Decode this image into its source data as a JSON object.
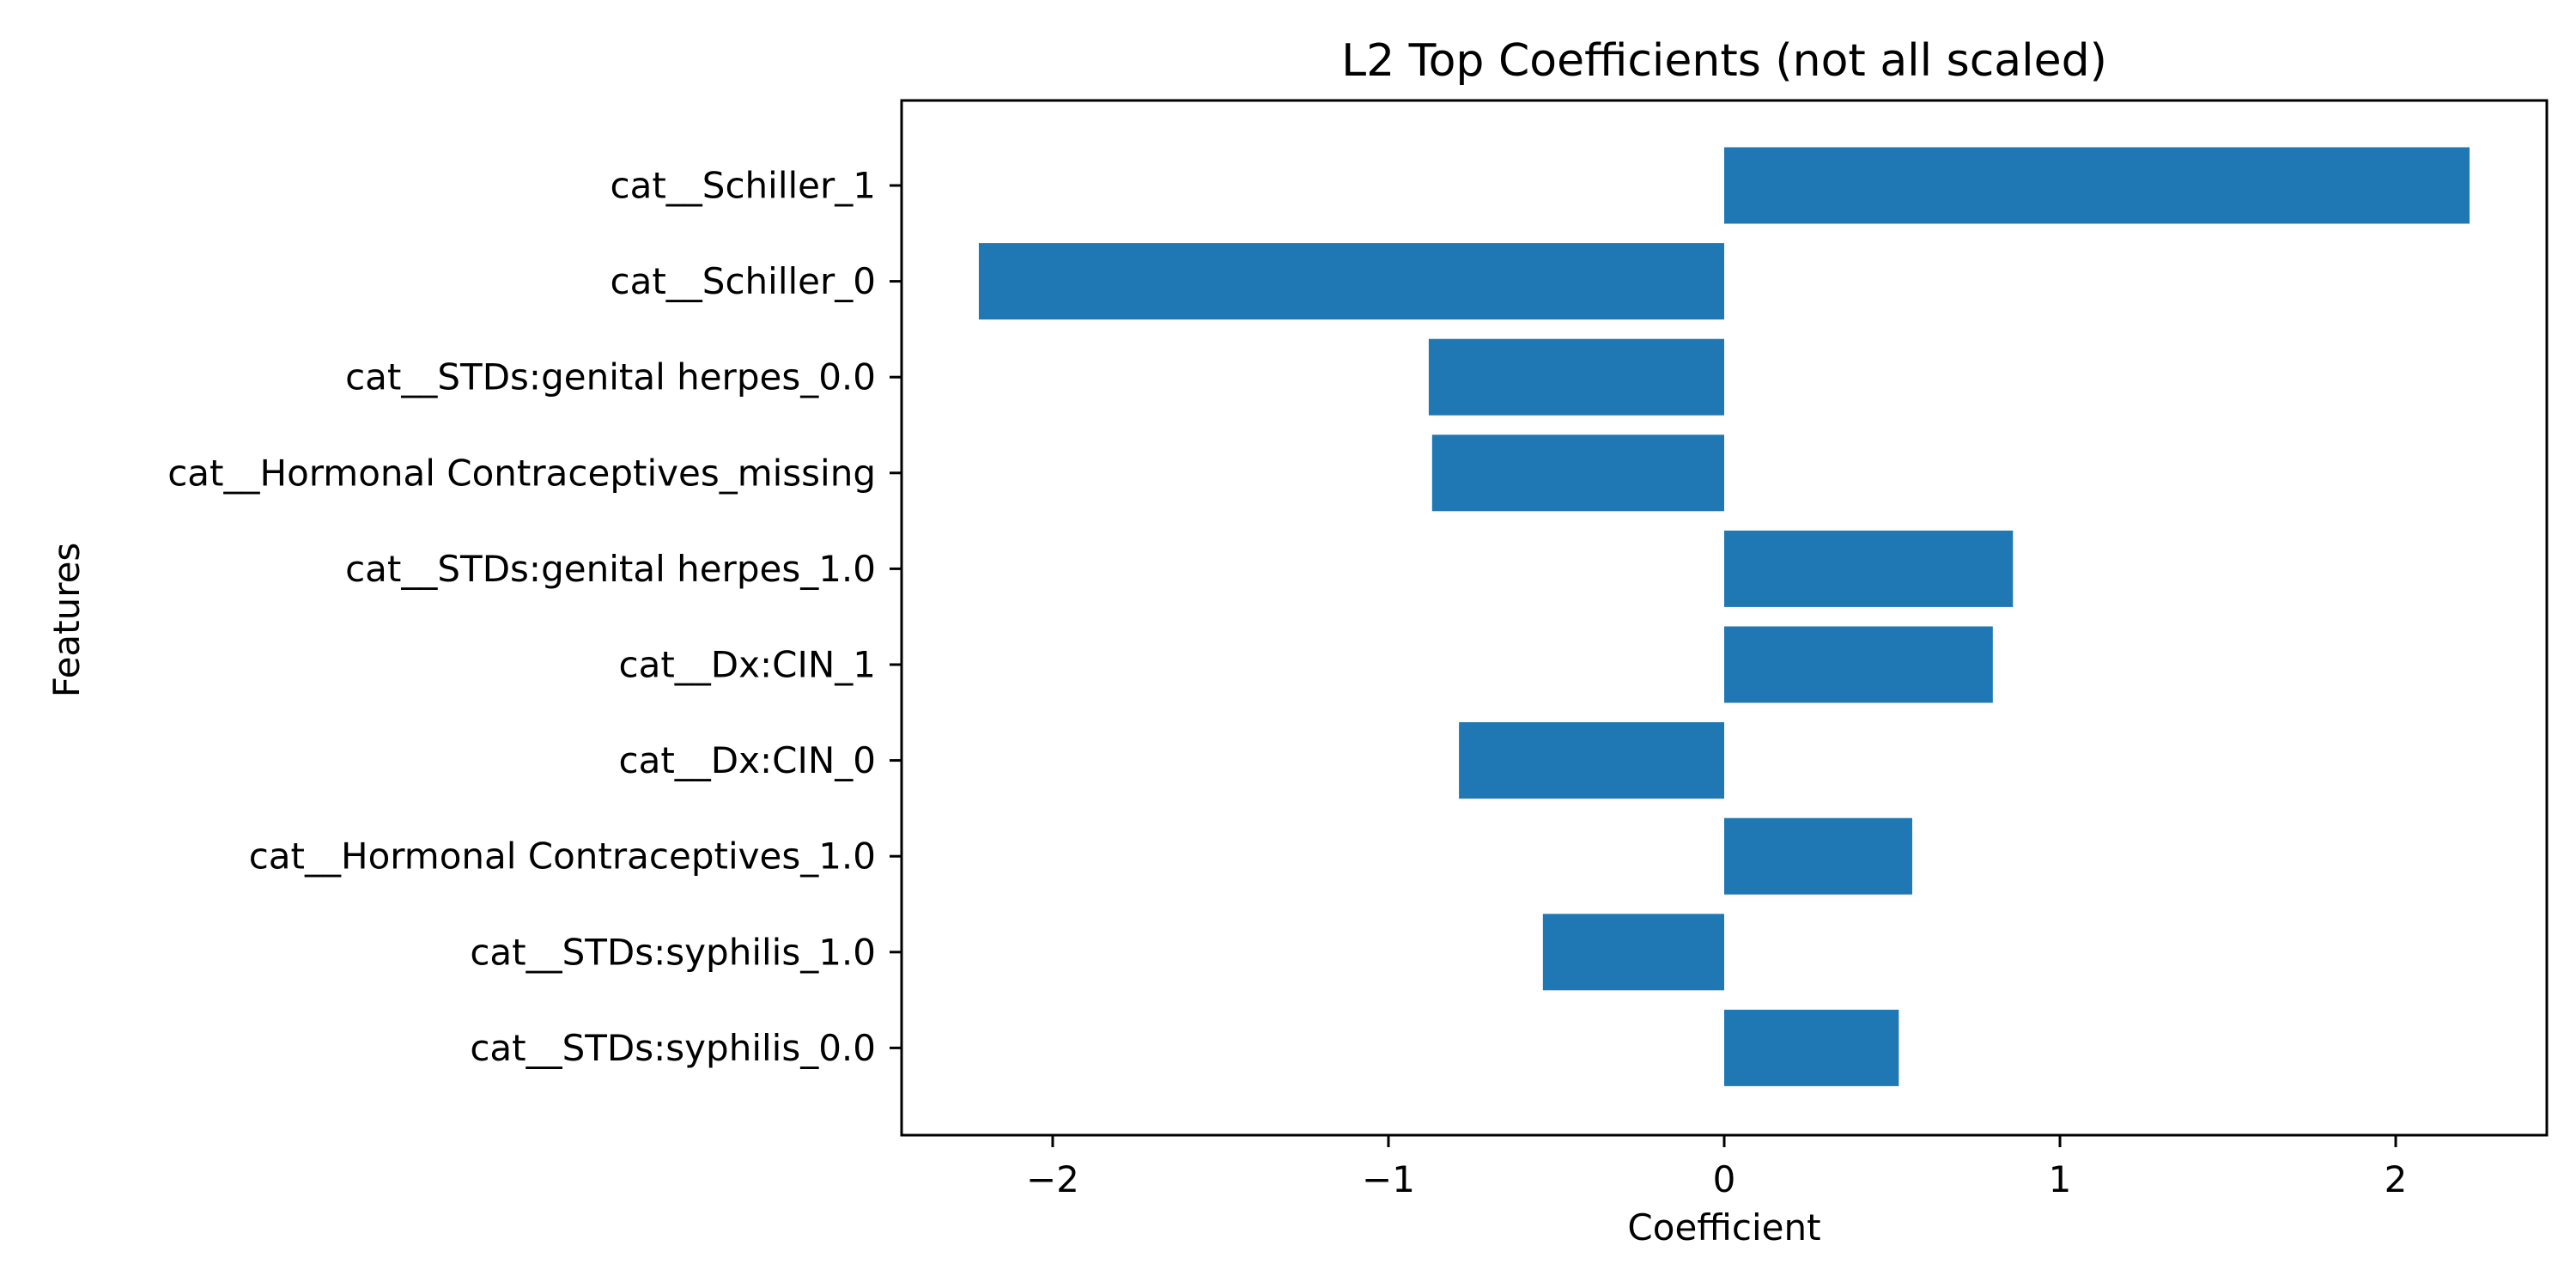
{
  "chart_data": {
    "type": "bar",
    "orientation": "horizontal",
    "title": "L2 Top Coefficients (not all scaled)",
    "xlabel": "Coefficient",
    "ylabel": "Features",
    "xlim": [
      -2.45,
      2.45
    ],
    "xticks": [
      -2,
      -1,
      0,
      1,
      2
    ],
    "xtick_labels": [
      "−2",
      "−1",
      "0",
      "1",
      "2"
    ],
    "grid": false,
    "bar_color": "#1f77b4",
    "categories": [
      "cat__Schiller_1",
      "cat__Schiller_0",
      "cat__STDs:genital herpes_0.0",
      "cat__Hormonal Contraceptives_missing",
      "cat__STDs:genital herpes_1.0",
      "cat__Dx:CIN_1",
      "cat__Dx:CIN_0",
      "cat__Hormonal Contraceptives_1.0",
      "cat__STDs:syphilis_1.0",
      "cat__STDs:syphilis_0.0"
    ],
    "values": [
      2.22,
      -2.22,
      -0.88,
      -0.87,
      0.86,
      0.8,
      -0.79,
      0.56,
      -0.54,
      0.52
    ]
  }
}
